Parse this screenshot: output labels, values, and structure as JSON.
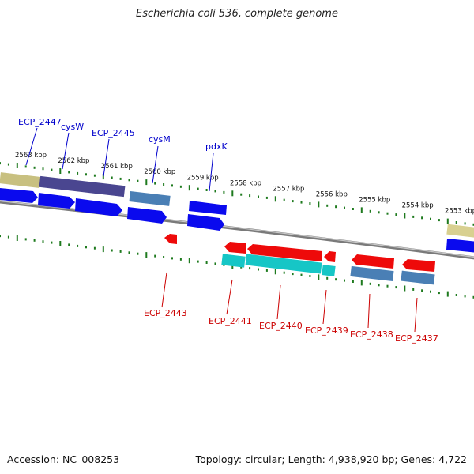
{
  "title": "Escherichia coli 536, complete genome",
  "footer": {
    "accession": "Accession: NC_008253",
    "summary": "Topology: circular; Length: 4,938,920 bp; Genes: 4,722"
  },
  "colors": {
    "backbone": "#8c8c8c",
    "ticks": "#1e7a1e",
    "forward_gene": "#0a0aee",
    "reverse_gene": "#ee0a0a",
    "cds_steelblue": "#4a7fb5",
    "cds_cyan": "#16c6c6",
    "cds_khaki": "#c8c080",
    "cds_slate": "#4a4690",
    "label_forward": "#0000cc",
    "label_reverse": "#cc0000"
  },
  "scale": {
    "unit": "kbp",
    "ticks": [
      {
        "kbp": 2563,
        "label": "2563 kbp"
      },
      {
        "kbp": 2562,
        "label": "2562 kbp"
      },
      {
        "kbp": 2561,
        "label": "2561 kbp"
      },
      {
        "kbp": 2560,
        "label": "2560 kbp"
      },
      {
        "kbp": 2559,
        "label": "2559 kbp"
      },
      {
        "kbp": 2558,
        "label": "2558 kbp"
      },
      {
        "kbp": 2557,
        "label": "2557 kbp"
      },
      {
        "kbp": 2556,
        "label": "2556 kbp"
      },
      {
        "kbp": 2555,
        "label": "2555 kbp"
      },
      {
        "kbp": 2554,
        "label": "2554 kbp"
      },
      {
        "kbp": 2553,
        "label": "2553 kbp"
      }
    ]
  },
  "genes": {
    "forward": [
      {
        "name": "ECP_2447"
      },
      {
        "name": "cysW"
      },
      {
        "name": "ECP_2445"
      },
      {
        "name": "cysM"
      },
      {
        "name": "pdxK"
      }
    ],
    "reverse": [
      {
        "name": "ECP_2443"
      },
      {
        "name": "ECP_2441"
      },
      {
        "name": "ECP_2440"
      },
      {
        "name": "ECP_2439"
      },
      {
        "name": "ECP_2438"
      },
      {
        "name": "ECP_2437"
      }
    ]
  }
}
